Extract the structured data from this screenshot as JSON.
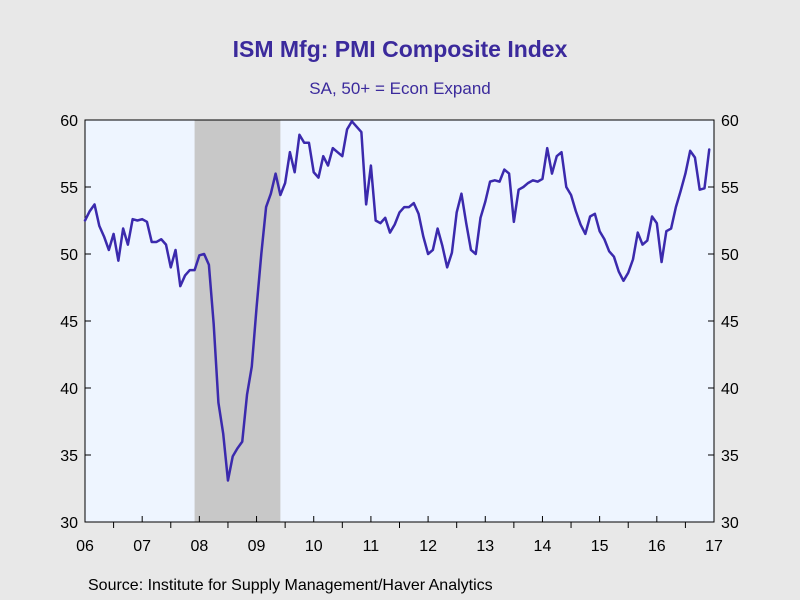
{
  "colors": {
    "background": "#e8e8e8",
    "plot_background": "#eef5ff",
    "line": "#3b2aad",
    "recession_shade": "#c8c8c8",
    "title": "#3b2a9c"
  },
  "footer": {
    "source": "Source:  Institute for Supply Management/Haver Analytics"
  },
  "chart_data": {
    "type": "line",
    "title": "ISM Mfg: PMI Composite Index",
    "subtitle": "SA, 50+ = Econ Expand",
    "xlabel": "",
    "ylabel": "",
    "x_range": [
      "2006-01",
      "2017-01"
    ],
    "ylim": [
      30,
      60
    ],
    "y_ticks": [
      30,
      35,
      40,
      45,
      50,
      55,
      60
    ],
    "y_axis_sides": [
      "left",
      "right"
    ],
    "x_tick_labels": [
      {
        "year": 2006,
        "label": "06"
      },
      {
        "year": 2007,
        "label": "07"
      },
      {
        "year": 2008,
        "label": "08"
      },
      {
        "year": 2009,
        "label": "09"
      },
      {
        "year": 2010,
        "label": "10"
      },
      {
        "year": 2011,
        "label": "11"
      },
      {
        "year": 2012,
        "label": "12"
      },
      {
        "year": 2013,
        "label": "13"
      },
      {
        "year": 2014,
        "label": "14"
      },
      {
        "year": 2015,
        "label": "15"
      },
      {
        "year": 2016,
        "label": "16"
      },
      {
        "year": 2017,
        "label": "17"
      }
    ],
    "grid": false,
    "legend": "none",
    "recession_shading": [
      {
        "start": "2007-12",
        "end": "2009-06"
      }
    ],
    "series": [
      {
        "start": "2006-01",
        "frequency": "monthly",
        "values": [
          52.5,
          53.2,
          53.7,
          52.1,
          51.3,
          50.3,
          51.5,
          49.5,
          51.9,
          50.7,
          52.6,
          52.5,
          52.6,
          52.4,
          50.9,
          50.9,
          51.1,
          50.7,
          49.0,
          50.3,
          47.6,
          48.4,
          48.8,
          48.8,
          49.9,
          50.0,
          49.2,
          44.8,
          38.9,
          36.6,
          33.1,
          34.9,
          35.5,
          36.0,
          39.5,
          41.6,
          46.0,
          50.0,
          53.5,
          54.5,
          56.0,
          54.4,
          55.3,
          57.6,
          56.1,
          58.9,
          58.3,
          58.3,
          56.1,
          55.7,
          57.3,
          56.6,
          57.9,
          57.6,
          57.3,
          59.3,
          59.9,
          59.5,
          59.1,
          53.7,
          56.6,
          52.5,
          52.3,
          52.7,
          51.6,
          52.2,
          53.1,
          53.5,
          53.5,
          53.8,
          53.0,
          51.3,
          50.0,
          50.3,
          51.9,
          50.6,
          49.0,
          50.1,
          53.1,
          54.5,
          52.3,
          50.3,
          50.0,
          52.7,
          53.9,
          55.4,
          55.5,
          55.4,
          56.3,
          56.0,
          52.4,
          54.8,
          55.0,
          55.3,
          55.5,
          55.4,
          55.6,
          57.9,
          56.0,
          57.3,
          57.6,
          55.0,
          54.4,
          53.2,
          52.2,
          51.5,
          52.8,
          53.0,
          51.7,
          51.1,
          50.2,
          49.8,
          48.7,
          48.0,
          48.6,
          49.6,
          51.6,
          50.7,
          51.0,
          52.8,
          52.3,
          49.4,
          51.7,
          51.9,
          53.5,
          54.7,
          56.0,
          57.7,
          57.2,
          54.8,
          54.9,
          57.8
        ]
      }
    ]
  }
}
